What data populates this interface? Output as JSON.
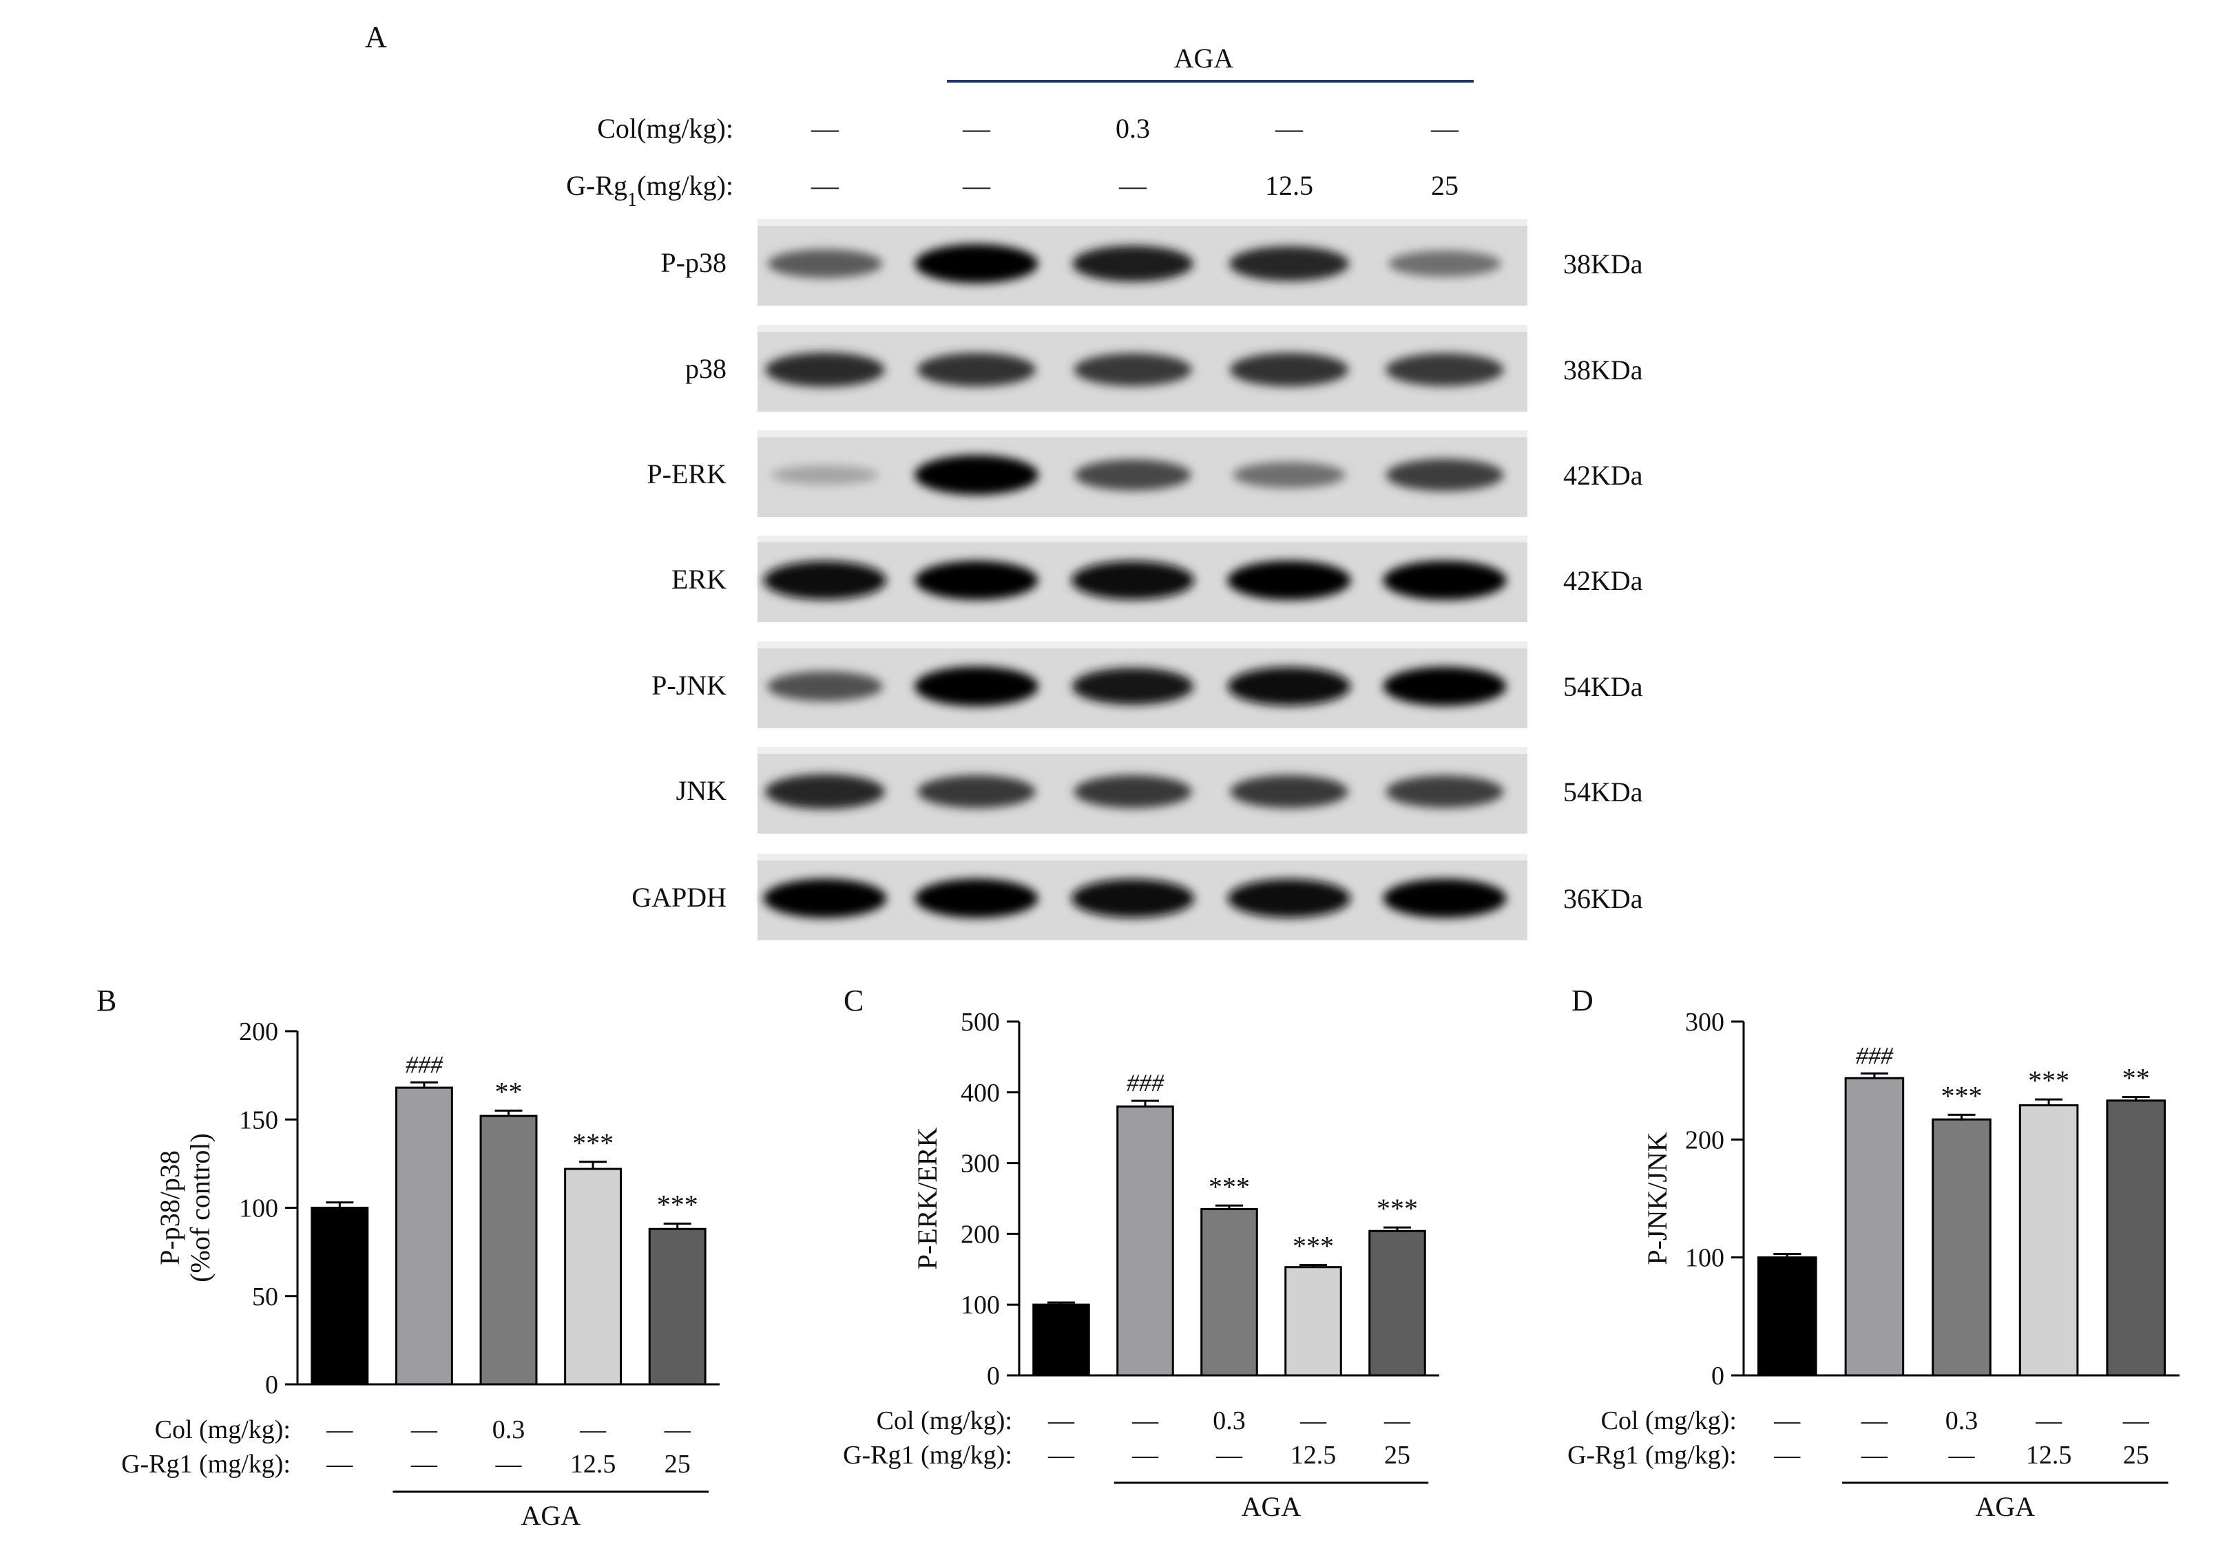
{
  "panel_a": {
    "label": "A",
    "group_label": "AGA",
    "treatment_labels": [
      {
        "name": "Col(mg/kg):",
        "subscript": "",
        "suffix": ""
      },
      {
        "name": "G-Rg",
        "subscript": "1",
        "suffix": "(mg/kg):"
      }
    ],
    "treatment_values": [
      [
        "—",
        "—",
        "0.3",
        "—",
        "—"
      ],
      [
        "—",
        "—",
        "—",
        "12.5",
        "25"
      ]
    ],
    "blots": [
      {
        "label": "P-p38",
        "weight": "38KDa",
        "intensity": [
          0.55,
          0.97,
          0.85,
          0.8,
          0.45
        ]
      },
      {
        "label": "p38",
        "weight": "38KDa",
        "intensity": [
          0.78,
          0.75,
          0.72,
          0.75,
          0.72
        ]
      },
      {
        "label": "P-ERK",
        "weight": "42KDa",
        "intensity": [
          0.18,
          1.0,
          0.65,
          0.45,
          0.7
        ]
      },
      {
        "label": "ERK",
        "weight": "42KDa",
        "intensity": [
          0.95,
          0.97,
          0.95,
          0.98,
          0.98
        ]
      },
      {
        "label": "P-JNK",
        "weight": "54KDa",
        "intensity": [
          0.6,
          1.0,
          0.88,
          0.95,
          0.97
        ]
      },
      {
        "label": "JNK",
        "weight": "54KDa",
        "intensity": [
          0.8,
          0.72,
          0.72,
          0.72,
          0.7
        ]
      },
      {
        "label": "GAPDH",
        "weight": "36KDa",
        "intensity": [
          0.97,
          0.97,
          0.95,
          0.95,
          0.97
        ]
      }
    ]
  },
  "chart_data": [
    {
      "panel": "B",
      "type": "bar",
      "ylabel_lines": [
        "P-p38/p38",
        "(%of control)"
      ],
      "ylim": [
        0,
        200
      ],
      "yticks": [
        0,
        50,
        100,
        150,
        200
      ],
      "values": [
        100,
        168,
        152,
        122,
        88
      ],
      "errors": [
        3,
        3,
        3,
        4,
        3
      ],
      "annotations": [
        "",
        "###",
        "**",
        "***",
        "***"
      ],
      "bar_colors": [
        "#000000",
        "#9d9da1",
        "#7b7b7b",
        "#d2d2d2",
        "#5e5e5e"
      ],
      "treatment_labels": [
        "Col (mg/kg):",
        "G-Rg1 (mg/kg):"
      ],
      "treatment_values": [
        [
          "—",
          "—",
          "0.3",
          "—",
          "—"
        ],
        [
          "—",
          "—",
          "—",
          "12.5",
          "25"
        ]
      ],
      "group_label": "AGA"
    },
    {
      "panel": "C",
      "type": "bar",
      "ylabel_lines": [
        "P-ERK/ERK"
      ],
      "ylim": [
        0,
        500
      ],
      "yticks": [
        0,
        100,
        200,
        300,
        400,
        500
      ],
      "values": [
        100,
        380,
        235,
        153,
        204
      ],
      "errors": [
        3,
        8,
        5,
        3,
        5
      ],
      "annotations": [
        "",
        "###",
        "***",
        "***",
        "***"
      ],
      "bar_colors": [
        "#000000",
        "#9d9da1",
        "#7b7b7b",
        "#d2d2d2",
        "#5e5e5e"
      ],
      "treatment_labels": [
        "Col (mg/kg):",
        "G-Rg1 (mg/kg):"
      ],
      "treatment_values": [
        [
          "—",
          "—",
          "0.3",
          "—",
          "—"
        ],
        [
          "—",
          "—",
          "—",
          "12.5",
          "25"
        ]
      ],
      "group_label": "AGA"
    },
    {
      "panel": "D",
      "type": "bar",
      "ylabel_lines": [
        "P-JNK/JNK"
      ],
      "ylim": [
        0,
        300
      ],
      "yticks": [
        0,
        100,
        200,
        300
      ],
      "values": [
        100,
        252,
        217,
        229,
        233
      ],
      "errors": [
        3,
        4,
        4,
        5,
        3
      ],
      "annotations": [
        "",
        "###",
        "***",
        "***",
        "**"
      ],
      "bar_colors": [
        "#000000",
        "#9d9da1",
        "#7b7b7b",
        "#d2d2d2",
        "#5e5e5e"
      ],
      "treatment_labels": [
        "Col (mg/kg):",
        "G-Rg1 (mg/kg):"
      ],
      "treatment_values": [
        [
          "—",
          "—",
          "0.3",
          "—",
          "—"
        ],
        [
          "—",
          "—",
          "—",
          "12.5",
          "25"
        ]
      ],
      "group_label": "AGA"
    }
  ]
}
